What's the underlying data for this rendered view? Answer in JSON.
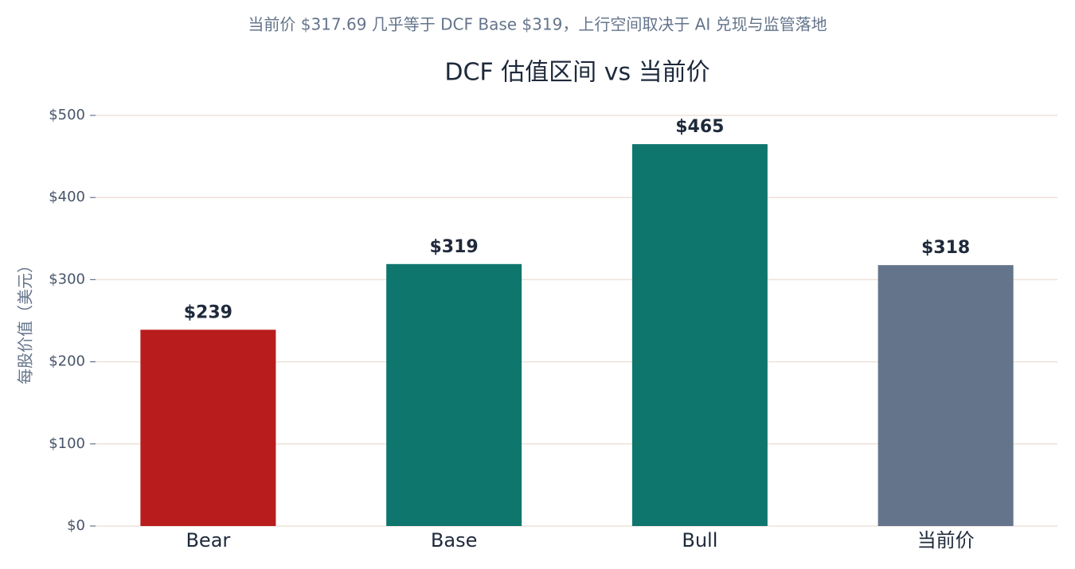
{
  "chart_data": {
    "type": "bar",
    "subtitle": "当前价 $317.69 几乎等于 DCF Base $319，上行空间取决于 AI 兑现与监管落地",
    "title": "DCF 估值区间 vs 当前价",
    "y_label": "每股价值（美元）",
    "categories": [
      "Bear",
      "Base",
      "Bull",
      "当前价"
    ],
    "values": [
      239,
      319,
      465,
      317.69
    ],
    "value_labels": [
      "$239",
      "$319",
      "$465",
      "$318"
    ],
    "colors": [
      "#b91c1c",
      "#0f766e",
      "#0f766e",
      "#64748b"
    ],
    "ylim": [
      0,
      500
    ],
    "yticks": [
      {
        "value": 0,
        "label": "$0"
      },
      {
        "value": 100,
        "label": "$100"
      },
      {
        "value": 200,
        "label": "$200"
      },
      {
        "value": 300,
        "label": "$300"
      },
      {
        "value": 400,
        "label": "$400"
      },
      {
        "value": 500,
        "label": "$500"
      }
    ],
    "grid": true
  }
}
